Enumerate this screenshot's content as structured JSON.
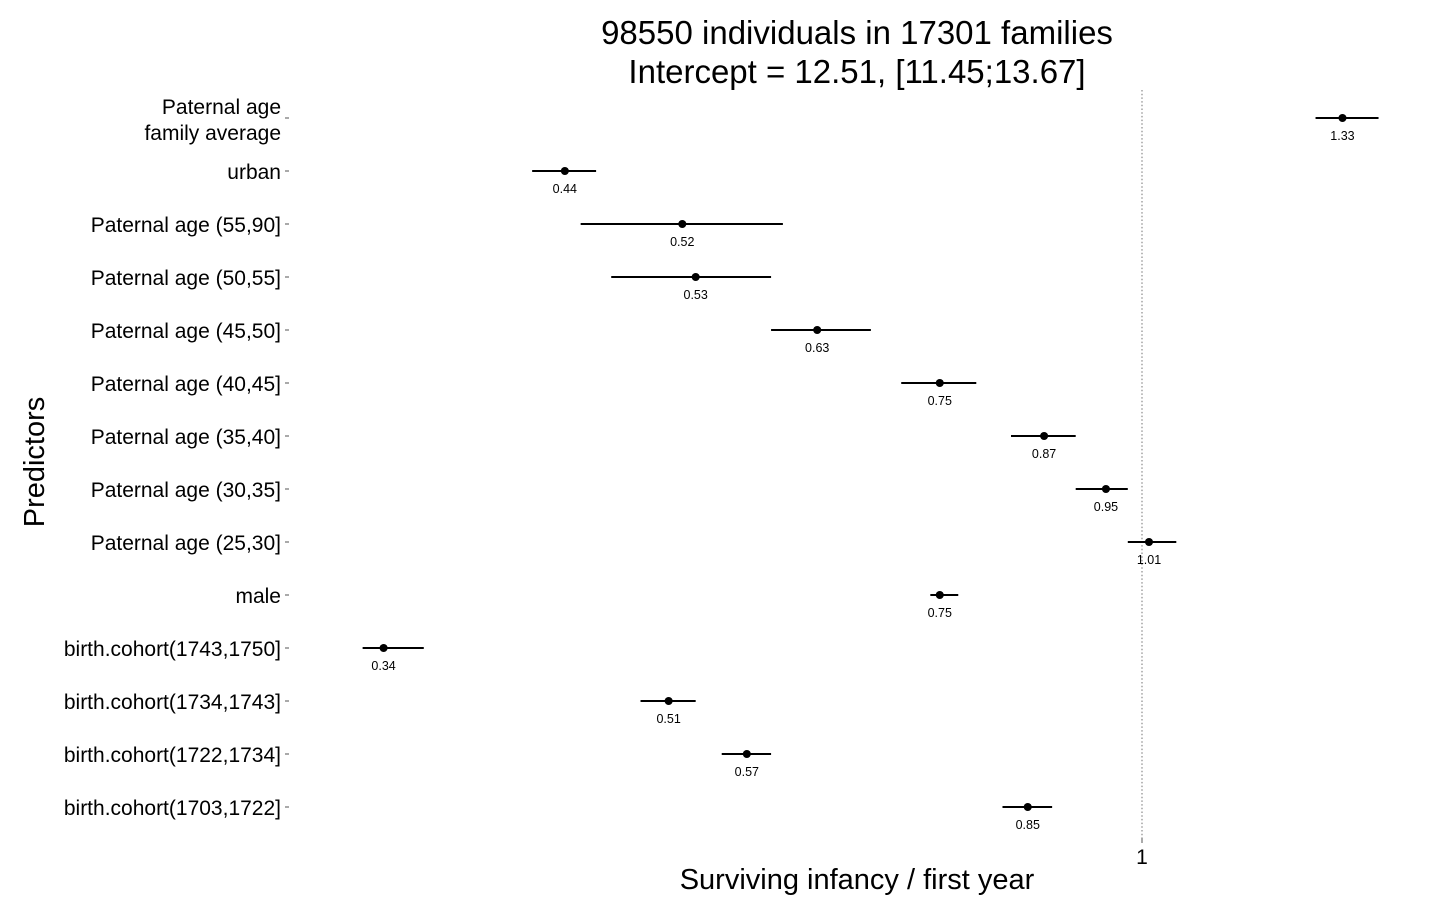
{
  "chart_data": {
    "type": "forest",
    "title_lines": [
      "98550 individuals in 17301 families",
      "Intercept = 12.51, [11.45;13.67]"
    ],
    "xlabel": "Surviving infancy / first year",
    "ylabel": "Predictors",
    "x_scale": "log",
    "reference_line": 1,
    "x_ticks": [
      {
        "value": 1,
        "label": "1"
      }
    ],
    "xlim": [
      0.31,
      1.63
    ],
    "grid": false,
    "rows": [
      {
        "label_lines": [
          "Paternal age",
          "family average"
        ],
        "estimate": 1.33,
        "ci": [
          1.28,
          1.4
        ],
        "value_label": "1.33"
      },
      {
        "label_lines": [
          "urban"
        ],
        "estimate": 0.44,
        "ci": [
          0.42,
          0.46
        ],
        "value_label": "0.44"
      },
      {
        "label_lines": [
          "Paternal age (55,90]"
        ],
        "estimate": 0.52,
        "ci": [
          0.45,
          0.6
        ],
        "value_label": "0.52"
      },
      {
        "label_lines": [
          "Paternal age (50,55]"
        ],
        "estimate": 0.53,
        "ci": [
          0.47,
          0.59
        ],
        "value_label": "0.53"
      },
      {
        "label_lines": [
          "Paternal age (45,50]"
        ],
        "estimate": 0.63,
        "ci": [
          0.59,
          0.68
        ],
        "value_label": "0.63"
      },
      {
        "label_lines": [
          "Paternal age (40,45]"
        ],
        "estimate": 0.75,
        "ci": [
          0.71,
          0.79
        ],
        "value_label": "0.75"
      },
      {
        "label_lines": [
          "Paternal age (35,40]"
        ],
        "estimate": 0.87,
        "ci": [
          0.83,
          0.91
        ],
        "value_label": "0.87"
      },
      {
        "label_lines": [
          "Paternal age (30,35]"
        ],
        "estimate": 0.95,
        "ci": [
          0.91,
          0.98
        ],
        "value_label": "0.95"
      },
      {
        "label_lines": [
          "Paternal age (25,30]"
        ],
        "estimate": 1.01,
        "ci": [
          0.98,
          1.05
        ],
        "value_label": "1.01"
      },
      {
        "label_lines": [
          "male"
        ],
        "estimate": 0.75,
        "ci": [
          0.74,
          0.77
        ],
        "value_label": "0.75"
      },
      {
        "label_lines": [
          "birth.cohort(1743,1750]"
        ],
        "estimate": 0.34,
        "ci": [
          0.33,
          0.36
        ],
        "value_label": "0.34"
      },
      {
        "label_lines": [
          "birth.cohort(1734,1743]"
        ],
        "estimate": 0.51,
        "ci": [
          0.49,
          0.53
        ],
        "value_label": "0.51"
      },
      {
        "label_lines": [
          "birth.cohort(1722,1734]"
        ],
        "estimate": 0.57,
        "ci": [
          0.55,
          0.59
        ],
        "value_label": "0.57"
      },
      {
        "label_lines": [
          "birth.cohort(1703,1722]"
        ],
        "estimate": 0.85,
        "ci": [
          0.82,
          0.88
        ],
        "value_label": "0.85"
      }
    ]
  }
}
